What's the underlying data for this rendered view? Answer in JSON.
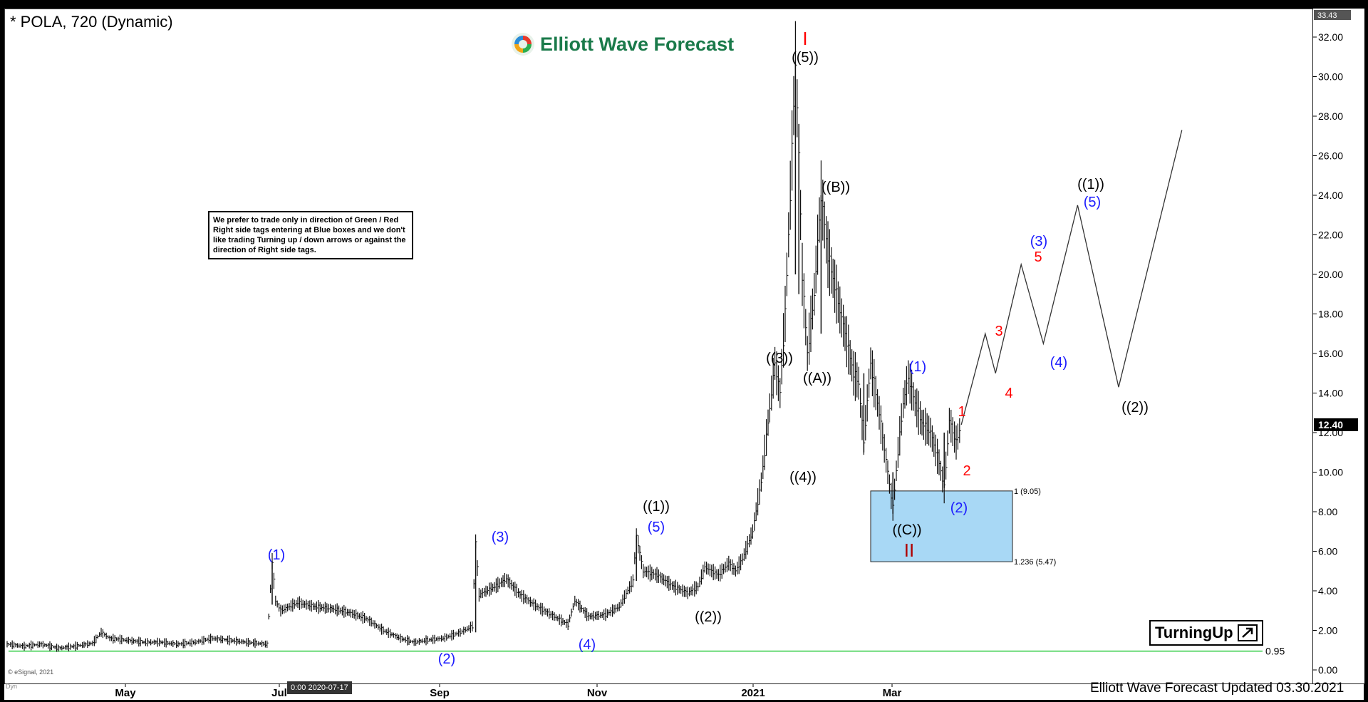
{
  "header": {
    "title": "* POLA, 720 (Dynamic)",
    "brand": "Elliott Wave Forecast"
  },
  "note": "We prefer to trade only in direction of Green / Red Right side tags entering at Blue boxes and we don't like trading Turning up / down arrows or against the direction of Right side tags.",
  "turning_label": "TurningUp",
  "footer": "Elliott Wave Forecast Updated 03.30.2021",
  "copyright": "© eSignal, 2021",
  "dyn_label": "Dyn",
  "crosshair_date": "0:00 2020-07-17",
  "price_tags": {
    "top": "33.43",
    "last": "12.40"
  },
  "support_label": "0.95",
  "box_labels": {
    "upper": "1 (9.05)",
    "lower": "1.236 (5.47)"
  },
  "colors": {
    "blue_box": "#a8d8f5",
    "support": "#2ecc40",
    "blue_label": "#1a1aff",
    "red_label": "#ff0000",
    "dark_red": "#b00000",
    "logo_green": "#1a7a4a"
  },
  "chart_data": {
    "type": "bar",
    "ylim": [
      0,
      33.43
    ],
    "y_ticks": [
      "32.00",
      "30.00",
      "28.00",
      "26.00",
      "24.00",
      "22.00",
      "20.00",
      "18.00",
      "16.00",
      "14.00",
      "12.00",
      "10.00",
      "8.00",
      "6.00",
      "4.00",
      "2.00",
      "0.00"
    ],
    "x_ticks": [
      "May",
      "Jul",
      "Sep",
      "Nov",
      "2021",
      "Mar"
    ],
    "support_level": 0.95,
    "blue_box": {
      "top": 9.05,
      "bottom": 5.47
    },
    "price_path": [
      [
        0,
        1.3
      ],
      [
        10,
        1.2
      ],
      [
        20,
        1.3
      ],
      [
        30,
        1.1
      ],
      [
        40,
        1.2
      ],
      [
        50,
        1.35
      ],
      [
        55,
        1.9
      ],
      [
        60,
        1.6
      ],
      [
        70,
        1.5
      ],
      [
        80,
        1.4
      ],
      [
        90,
        1.4
      ],
      [
        100,
        1.3
      ],
      [
        110,
        1.4
      ],
      [
        120,
        1.6
      ],
      [
        130,
        1.5
      ],
      [
        140,
        1.4
      ],
      [
        152,
        1.3
      ],
      [
        155,
        5.5
      ],
      [
        157,
        3.5
      ],
      [
        160,
        3.0
      ],
      [
        170,
        3.4
      ],
      [
        180,
        3.2
      ],
      [
        190,
        3.1
      ],
      [
        200,
        2.9
      ],
      [
        210,
        2.6
      ],
      [
        220,
        2.0
      ],
      [
        230,
        1.6
      ],
      [
        238,
        1.4
      ],
      [
        245,
        1.5
      ],
      [
        255,
        1.6
      ],
      [
        265,
        1.9
      ],
      [
        272,
        2.2
      ],
      [
        274,
        6.5
      ],
      [
        276,
        3.8
      ],
      [
        285,
        4.2
      ],
      [
        292,
        4.6
      ],
      [
        300,
        3.8
      ],
      [
        310,
        3.2
      ],
      [
        320,
        2.7
      ],
      [
        328,
        2.3
      ],
      [
        332,
        3.5
      ],
      [
        340,
        2.7
      ],
      [
        350,
        2.8
      ],
      [
        358,
        3.2
      ],
      [
        366,
        4.5
      ],
      [
        368,
        6.8
      ],
      [
        372,
        5.0
      ],
      [
        380,
        4.8
      ],
      [
        390,
        4.2
      ],
      [
        398,
        3.9
      ],
      [
        404,
        4.2
      ],
      [
        408,
        5.2
      ],
      [
        416,
        4.8
      ],
      [
        422,
        5.4
      ],
      [
        426,
        5.0
      ],
      [
        430,
        5.6
      ],
      [
        436,
        7.0
      ],
      [
        441,
        9.5
      ],
      [
        445,
        12.5
      ],
      [
        449,
        15.5
      ],
      [
        452,
        14.0
      ],
      [
        455,
        18.0
      ],
      [
        458,
        24.0
      ],
      [
        461,
        30.8
      ],
      [
        463,
        26.0
      ],
      [
        465,
        20.0
      ],
      [
        468,
        16.0
      ],
      [
        472,
        19.0
      ],
      [
        476,
        24.0
      ],
      [
        480,
        21.0
      ],
      [
        485,
        19.0
      ],
      [
        490,
        17.0
      ],
      [
        495,
        15.0
      ],
      [
        498,
        14.5
      ],
      [
        501,
        11.5
      ],
      [
        505,
        15.5
      ],
      [
        510,
        13.0
      ],
      [
        515,
        10.0
      ],
      [
        518,
        8.2
      ],
      [
        521,
        11.0
      ],
      [
        524,
        13.5
      ],
      [
        527,
        14.8
      ],
      [
        531,
        13.5
      ],
      [
        535,
        12.5
      ],
      [
        540,
        12.0
      ],
      [
        545,
        10.5
      ],
      [
        548,
        9.2
      ],
      [
        551,
        12.6
      ],
      [
        555,
        11.5
      ],
      [
        558,
        12.4
      ]
    ],
    "projection_path": [
      [
        558,
        12.4
      ],
      [
        572,
        17.0
      ],
      [
        578,
        15.0
      ],
      [
        593,
        20.5
      ],
      [
        606,
        16.5
      ],
      [
        626,
        23.5
      ],
      [
        650,
        14.3
      ],
      [
        687,
        27.3
      ]
    ]
  },
  "wave_labels": [
    {
      "text": "(1)",
      "color": "blue"
    },
    {
      "text": "(2)",
      "color": "blue"
    },
    {
      "text": "(3)",
      "color": "blue"
    },
    {
      "text": "(4)",
      "color": "blue"
    },
    {
      "text": "(5)",
      "color": "blue"
    },
    {
      "text": "((1))",
      "color": "black"
    },
    {
      "text": "((2))",
      "color": "black"
    },
    {
      "text": "((3))",
      "color": "black"
    },
    {
      "text": "((4))",
      "color": "black"
    },
    {
      "text": "((5))",
      "color": "black"
    },
    {
      "text": "I",
      "color": "red"
    },
    {
      "text": "((A))",
      "color": "black"
    },
    {
      "text": "((B))",
      "color": "black"
    },
    {
      "text": "((C))",
      "color": "black"
    },
    {
      "text": "II",
      "color": "darkred"
    },
    {
      "text": "(1)",
      "color": "blue"
    },
    {
      "text": "(2)",
      "color": "blue"
    },
    {
      "text": "1",
      "color": "red"
    },
    {
      "text": "2",
      "color": "red"
    },
    {
      "text": "3",
      "color": "red"
    },
    {
      "text": "4",
      "color": "red"
    },
    {
      "text": "5",
      "color": "red"
    },
    {
      "text": "(3)",
      "color": "blue"
    },
    {
      "text": "(4)",
      "color": "blue"
    },
    {
      "text": "(5)",
      "color": "blue"
    },
    {
      "text": "((1))",
      "color": "black"
    },
    {
      "text": "((2))",
      "color": "black"
    }
  ]
}
